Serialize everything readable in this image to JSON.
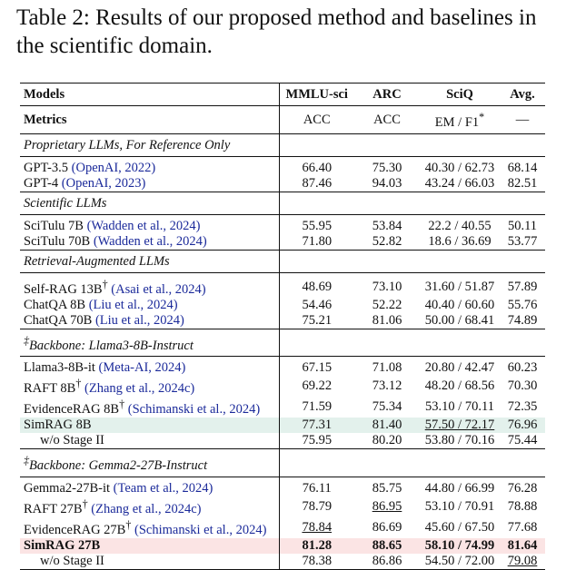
{
  "caption": "Table 2: Results of our proposed method and baselines in the scientific domain.",
  "table": {
    "header": [
      "Models",
      "MMLU-sci",
      "ARC",
      "SciQ",
      "Avg."
    ],
    "metrics": [
      "Metrics",
      "ACC",
      "ACC",
      "EM / F1",
      "—"
    ],
    "metric_note": "*",
    "sections": [
      {
        "title": "Proprietary LLMs, For Reference Only",
        "rows": [
          {
            "model": "GPT-3.5",
            "cite": "(OpenAI, 2022)",
            "cells": [
              "66.40",
              "75.30",
              "40.30 / 62.73",
              "68.14"
            ]
          },
          {
            "model": "GPT-4",
            "cite": "(OpenAI, 2023)",
            "cells": [
              "87.46",
              "94.03",
              "43.24 / 66.03",
              "82.51"
            ]
          }
        ]
      },
      {
        "title": "Scientific LLMs",
        "rows": [
          {
            "model": "SciTulu 7B",
            "cite": "(Wadden et al., 2024)",
            "cells": [
              "55.95",
              "53.84",
              "22.2 / 40.55",
              "50.11"
            ]
          },
          {
            "model": "SciTulu 70B",
            "cite": "(Wadden et al., 2024)",
            "cells": [
              "71.80",
              "52.82",
              "18.6 / 36.69",
              "53.77"
            ]
          }
        ]
      },
      {
        "title": "Retrieval-Augmented LLMs",
        "rows": [
          {
            "model": "Self-RAG 13B",
            "sup": "†",
            "cite": "(Asai et al., 2024)",
            "cells": [
              "48.69",
              "73.10",
              "31.60 / 51.87",
              "57.89"
            ]
          },
          {
            "model": "ChatQA 8B",
            "cite": "(Liu et al., 2024)",
            "cells": [
              "54.46",
              "52.22",
              "40.40 / 60.60",
              "55.76"
            ]
          },
          {
            "model": "ChatQA 70B",
            "cite": "(Liu et al., 2024)",
            "cells": [
              "75.21",
              "81.06",
              "50.00 / 68.41",
              "74.89"
            ]
          }
        ]
      },
      {
        "prefix": "‡",
        "title": "Backbone: Llama3-8B-Instruct",
        "rows": [
          {
            "model": "Llama3-8B-it",
            "cite": "(Meta-AI, 2024)",
            "cells": [
              "67.15",
              "71.08",
              "20.80 / 42.47",
              "60.23"
            ]
          },
          {
            "model": "RAFT 8B",
            "sup": "†",
            "cite": "(Zhang et al., 2024c)",
            "cells": [
              "69.22",
              "73.12",
              "48.20 / 68.56",
              "70.30"
            ]
          },
          {
            "model": "EvidenceRAG 8B",
            "sup": "†",
            "cite": "(Schimanski et al., 2024)",
            "cells": [
              "71.59",
              "75.34",
              "53.10 / 70.11",
              "72.35"
            ]
          },
          {
            "model": "SimRAG 8B",
            "highlight": "#e3f1ec",
            "underline": [
              2
            ],
            "cells": [
              "77.31",
              "81.40",
              "57.50 / 72.17",
              "76.96"
            ]
          },
          {
            "model": "w/o Stage II",
            "indent": true,
            "cells": [
              "75.95",
              "80.20",
              "53.80 / 70.16",
              "75.44"
            ]
          }
        ]
      },
      {
        "prefix": "‡",
        "title": "Backbone: Gemma2-27B-Instruct",
        "rows": [
          {
            "model": "Gemma2-27B-it",
            "cite": "(Team et al., 2024)",
            "cells": [
              "76.11",
              "85.75",
              "44.80 / 66.99",
              "76.28"
            ]
          },
          {
            "model": "RAFT 27B",
            "sup": "†",
            "cite": "(Zhang et al., 2024c)",
            "underline": [
              1
            ],
            "cells": [
              "78.79",
              "86.95",
              "53.10 / 70.91",
              "78.88"
            ]
          },
          {
            "model": "EvidenceRAG 27B",
            "sup": "†",
            "cite": "(Schimanski et al., 2024)",
            "underline": [
              0
            ],
            "cells": [
              "78.84",
              "86.69",
              "45.60 / 67.50",
              "77.68"
            ]
          },
          {
            "model": "SimRAG 27B",
            "highlight": "#fbe4e4",
            "bold": true,
            "cells": [
              "81.28",
              "88.65",
              "58.10 / 74.99",
              "81.64"
            ]
          },
          {
            "model": "w/o Stage II",
            "indent": true,
            "underline": [
              3
            ],
            "cells": [
              "78.38",
              "86.86",
              "54.50 / 72.00",
              "79.08"
            ]
          }
        ]
      }
    ]
  }
}
